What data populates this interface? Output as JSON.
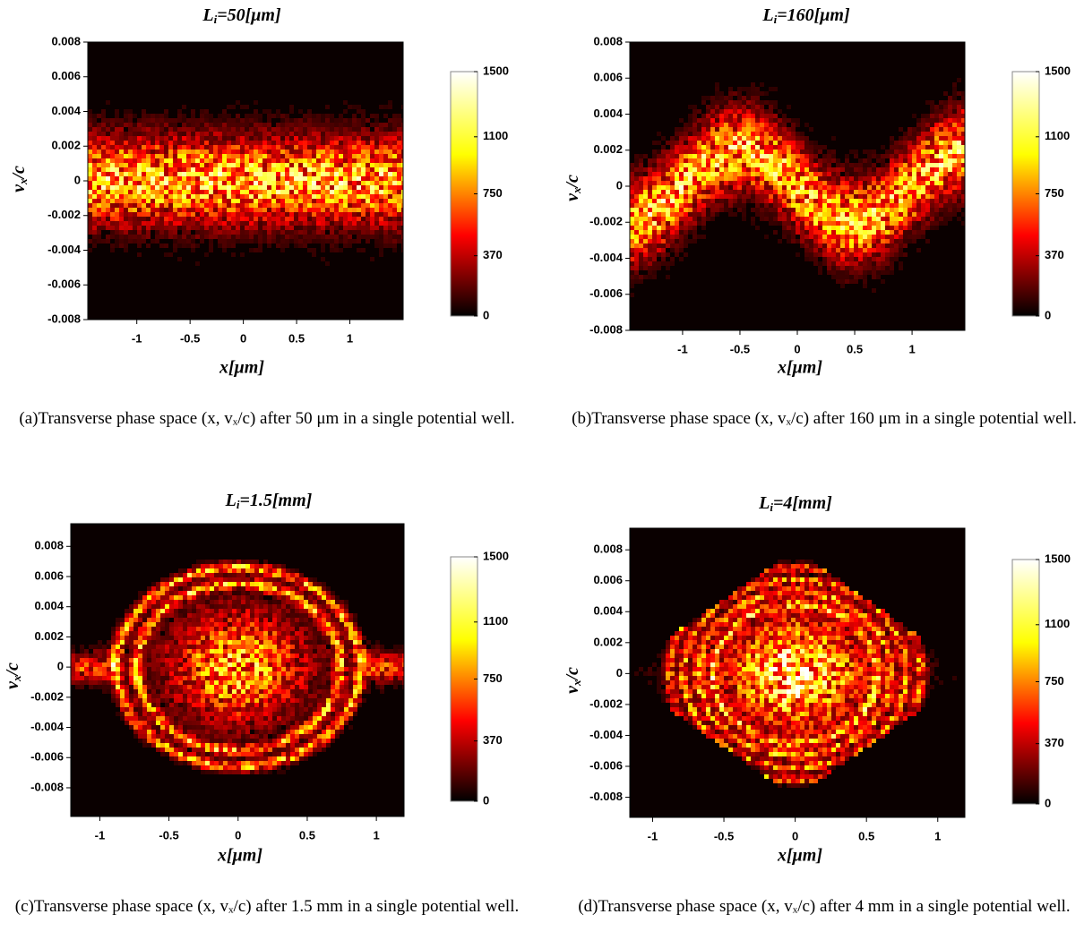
{
  "chart_data": [
    {
      "type": "heatmap",
      "title": {
        "symbol": "L",
        "subscript": "i",
        "text": "=50[μm]"
      },
      "xlabel": "x[μm]",
      "ylabel": {
        "symbol": "v",
        "subscript": "x",
        "text": "/c"
      },
      "xlim": [
        -1.46,
        1.5
      ],
      "ylim": [
        -0.008,
        0.008
      ],
      "xticks": [
        -1,
        -0.5,
        0,
        0.5,
        1
      ],
      "yticks": [
        0.008,
        0.006,
        0.004,
        0.002,
        0,
        -0.002,
        -0.004,
        -0.006,
        -0.008
      ],
      "colorbar": {
        "lim": [
          0,
          1500
        ],
        "ticks": [
          0,
          370,
          750,
          1100,
          1500
        ]
      },
      "caption": "(a)Transverse phase space (x, vₓ/c) after 50 μm in a single potential well."
    },
    {
      "type": "heatmap",
      "title": {
        "symbol": "L",
        "subscript": "i",
        "text": "=160[μm]"
      },
      "xlabel": "x[μm]",
      "ylabel": {
        "symbol": "v",
        "subscript": "x",
        "text": "/c"
      },
      "xlim": [
        -1.46,
        1.46
      ],
      "ylim": [
        -0.008,
        0.008
      ],
      "xticks": [
        -1,
        -0.5,
        0,
        0.5,
        1
      ],
      "yticks": [
        0.008,
        0.006,
        0.004,
        0.002,
        0,
        -0.002,
        -0.004,
        -0.006,
        -0.008
      ],
      "colorbar": {
        "lim": [
          0,
          1500
        ],
        "ticks": [
          0,
          370,
          750,
          1100,
          1500
        ]
      },
      "caption": "(b)Transverse phase space (x, vₓ/c) after 160 μm in a single potential well."
    },
    {
      "type": "heatmap",
      "title": {
        "symbol": "L",
        "subscript": "i",
        "text": "=1.5[mm]"
      },
      "xlabel": "x[μm]",
      "ylabel": {
        "symbol": "v",
        "subscript": "x",
        "text": "/c"
      },
      "xlim": [
        -1.21,
        1.2
      ],
      "ylim": [
        -0.0099,
        0.0095
      ],
      "xticks": [
        -1,
        -0.5,
        0,
        0.5,
        1
      ],
      "yticks": [
        0.008,
        0.006,
        0.004,
        0.002,
        0,
        -0.002,
        -0.004,
        -0.006,
        -0.008
      ],
      "colorbar": {
        "lim": [
          0,
          1500
        ],
        "ticks": [
          0,
          370,
          750,
          1100,
          1500
        ]
      },
      "caption": "(c)Transverse phase space (x, vₓ/c) after 1.5 mm in a single potential well."
    },
    {
      "type": "heatmap",
      "title": {
        "symbol": "L",
        "subscript": "i",
        "text": "=4[mm]"
      },
      "xlabel": "x[μm]",
      "ylabel": {
        "symbol": "v",
        "subscript": "x",
        "text": "/c"
      },
      "xlim": [
        -1.16,
        1.19
      ],
      "ylim": [
        -0.0093,
        0.0094
      ],
      "xticks": [
        -1,
        -0.5,
        0,
        0.5,
        1
      ],
      "yticks": [
        0.008,
        0.006,
        0.004,
        0.002,
        0,
        -0.002,
        -0.004,
        -0.006,
        -0.008
      ],
      "colorbar": {
        "lim": [
          0,
          1500
        ],
        "ticks": [
          0,
          370,
          750,
          1100,
          1500
        ]
      },
      "caption": "(d)Transverse phase space (x, vₓ/c) after 4 mm in a single potential well."
    }
  ]
}
